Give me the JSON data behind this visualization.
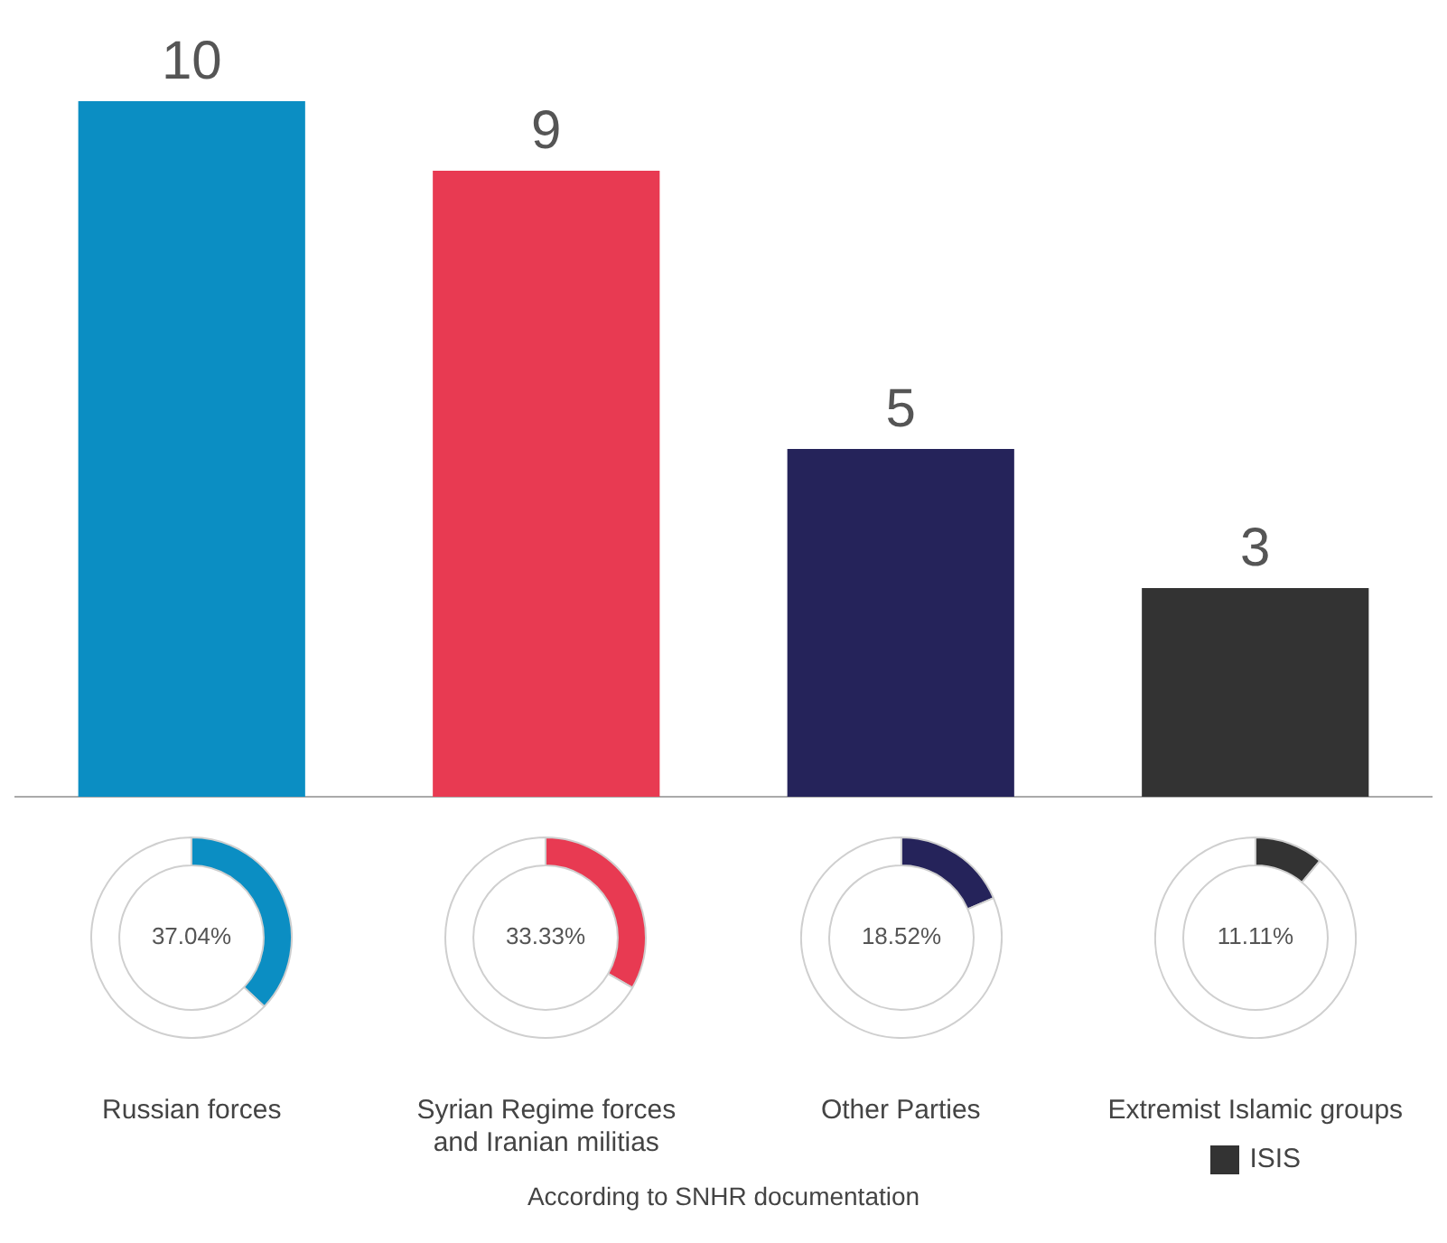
{
  "chart_data": [
    {
      "type": "bar",
      "categories": [
        "Russian forces",
        "Syrian Regime forces and Iranian militias",
        "Other Parties",
        "Extremist Islamic groups"
      ],
      "values": [
        10,
        9,
        5,
        3
      ],
      "colors": [
        "#0b8ec3",
        "#e83a52",
        "#25235a",
        "#333333"
      ],
      "data_labels": true,
      "grid": false,
      "legend": false,
      "tick_labels": "x",
      "annotations": [
        "ISIS",
        "According to SNHR documentation"
      ]
    },
    {
      "type": "donut",
      "categories": [
        null,
        null
      ],
      "values": [
        37.04,
        62.96
      ],
      "colors": [
        "#0b8ec3",
        "#ffffff"
      ],
      "value_labels": [
        "37.04%",
        null
      ]
    },
    {
      "type": "donut",
      "categories": [
        null,
        null
      ],
      "values": [
        33.33,
        66.67
      ],
      "colors": [
        "#e83a52",
        "#ffffff"
      ],
      "value_labels": [
        "33.33%",
        null
      ]
    },
    {
      "type": "donut",
      "categories": [
        null,
        null
      ],
      "values": [
        18.52,
        81.48
      ],
      "colors": [
        "#25235a",
        "#ffffff"
      ],
      "value_labels": [
        "18.52%",
        null
      ]
    },
    {
      "type": "donut",
      "categories": [
        null,
        null
      ],
      "values": [
        11.11,
        88.89
      ],
      "colors": [
        "#333333",
        "#ffffff"
      ],
      "value_labels": [
        "11.11%",
        null
      ]
    }
  ]
}
